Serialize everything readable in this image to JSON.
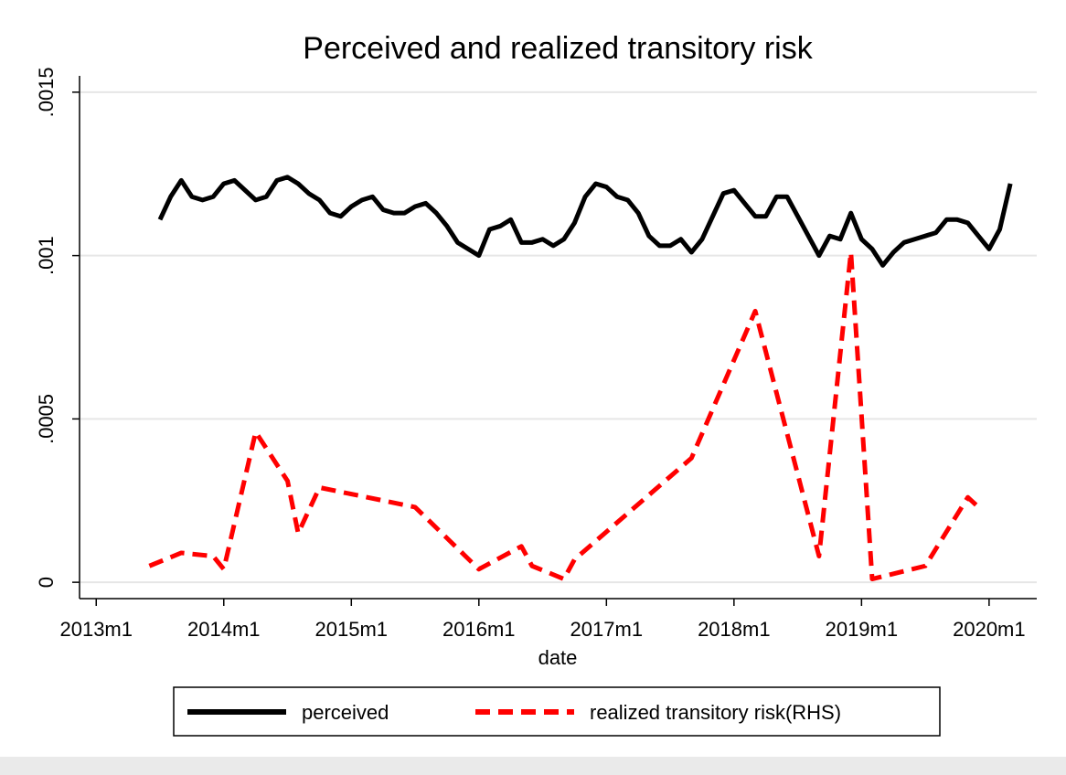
{
  "chart_data": {
    "type": "line",
    "title": "Perceived and realized transitory risk",
    "x_label": "date",
    "xlim": [
      "2012m11",
      "2020m6"
    ],
    "xticks": [
      "2013m1",
      "2014m1",
      "2015m1",
      "2016m1",
      "2017m1",
      "2018m1",
      "2019m1",
      "2020m1"
    ],
    "ylim": [
      -5e-05,
      0.00155
    ],
    "yticks": [
      {
        "value": 0,
        "label": "0"
      },
      {
        "value": 0.0005,
        "label": ".0005"
      },
      {
        "value": 0.001,
        "label": ".001"
      },
      {
        "value": 0.0015,
        "label": ".0015"
      }
    ],
    "grid": true,
    "legend": "bottom",
    "series": [
      {
        "name": "perceived",
        "color": "#000000",
        "dashed": false,
        "x": [
          "2013m7",
          "2013m8",
          "2013m9",
          "2013m10",
          "2013m11",
          "2013m12",
          "2014m1",
          "2014m2",
          "2014m3",
          "2014m4",
          "2014m5",
          "2014m6",
          "2014m7",
          "2014m8",
          "2014m9",
          "2014m10",
          "2014m11",
          "2014m12",
          "2015m1",
          "2015m2",
          "2015m3",
          "2015m4",
          "2015m5",
          "2015m6",
          "2015m7",
          "2015m8",
          "2015m9",
          "2015m10",
          "2015m11",
          "2015m12",
          "2016m1",
          "2016m2",
          "2016m3",
          "2016m4",
          "2016m5",
          "2016m6",
          "2016m7",
          "2016m8",
          "2016m9",
          "2016m10",
          "2016m11",
          "2016m12",
          "2017m1",
          "2017m2",
          "2017m3",
          "2017m4",
          "2017m5",
          "2017m6",
          "2017m7",
          "2017m8",
          "2017m9",
          "2017m10",
          "2017m11",
          "2017m12",
          "2018m1",
          "2018m2",
          "2018m3",
          "2018m4",
          "2018m5",
          "2018m6",
          "2018m7",
          "2018m8",
          "2018m9",
          "2018m10",
          "2018m11",
          "2018m12",
          "2019m1",
          "2019m2",
          "2019m3",
          "2019m4",
          "2019m5",
          "2019m6",
          "2019m7",
          "2019m8",
          "2019m9",
          "2019m10",
          "2019m11",
          "2019m12",
          "2020m1",
          "2020m2",
          "2020m3"
        ],
        "values": [
          0.00111,
          0.00118,
          0.00123,
          0.00118,
          0.00117,
          0.00118,
          0.00122,
          0.00123,
          0.0012,
          0.00117,
          0.00118,
          0.00123,
          0.00124,
          0.00122,
          0.00119,
          0.00117,
          0.00113,
          0.00112,
          0.00115,
          0.00117,
          0.00118,
          0.00114,
          0.00113,
          0.00113,
          0.00115,
          0.00116,
          0.00113,
          0.00109,
          0.00104,
          0.00102,
          0.001,
          0.00108,
          0.00109,
          0.00111,
          0.00104,
          0.00104,
          0.00105,
          0.00103,
          0.00105,
          0.0011,
          0.00118,
          0.00122,
          0.00121,
          0.00118,
          0.00117,
          0.00113,
          0.00106,
          0.00103,
          0.00103,
          0.00105,
          0.00101,
          0.00105,
          0.00112,
          0.00119,
          0.0012,
          0.00116,
          0.00112,
          0.00112,
          0.00118,
          0.00118,
          0.00112,
          0.00106,
          0.001,
          0.00106,
          0.00105,
          0.00113,
          0.00105,
          0.00102,
          0.00097,
          0.00101,
          0.00104,
          0.00105,
          0.00106,
          0.00107,
          0.00111,
          0.00111,
          0.0011,
          0.00106,
          0.00102,
          0.00108,
          0.00122
        ]
      },
      {
        "name": "realized transitory risk(RHS)",
        "color": "#ff0000",
        "dashed": true,
        "x": [
          "2013m6",
          "2013m9",
          "2013m12",
          "2014m1",
          "2014m4",
          "2014m7",
          "2014m8",
          "2014m10",
          "2015m7",
          "2016m1",
          "2016m5",
          "2016m6",
          "2016m9",
          "2016m10",
          "2017m9",
          "2018m3",
          "2018m9",
          "2018m12",
          "2019m2",
          "2019m7",
          "2019m11",
          "2019m12"
        ],
        "values": [
          5e-05,
          9e-05,
          8e-05,
          4e-05,
          0.00046,
          0.00031,
          0.00015,
          0.00029,
          0.00023,
          4e-05,
          0.00011,
          5e-05,
          1e-05,
          7e-05,
          0.00038,
          0.00083,
          8e-05,
          0.00101,
          1e-05,
          5e-05,
          0.00026,
          0.00023
        ]
      }
    ]
  }
}
